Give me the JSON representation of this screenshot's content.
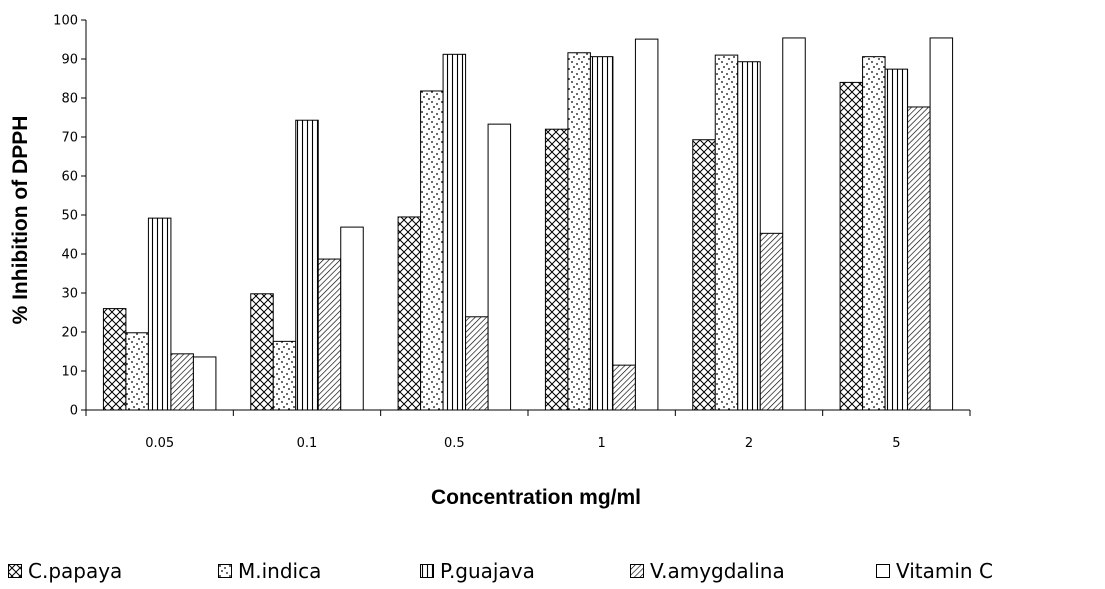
{
  "chart_data": {
    "type": "bar",
    "title": "",
    "xlabel": "Concentration mg/ml",
    "ylabel": "% Inhibition of DPPH",
    "categories": [
      "0.05",
      "0.1",
      "0.5",
      "1",
      "2",
      "5"
    ],
    "ylim": [
      0,
      100
    ],
    "yticks": [
      "0",
      "10",
      "20",
      "30",
      "40",
      "50",
      "60",
      "70",
      "80",
      "90",
      "100"
    ],
    "grid": false,
    "legend_position": "bottom",
    "series": [
      {
        "name": "C.papaya",
        "pattern": "crosshatch",
        "values": [
          26,
          29.8,
          49.5,
          72,
          69.3,
          84
        ]
      },
      {
        "name": "M.indica",
        "pattern": "dotted",
        "values": [
          19.8,
          17.6,
          81.8,
          91.6,
          91,
          90.6
        ]
      },
      {
        "name": "P.guajava",
        "pattern": "vertical-lines",
        "values": [
          49.2,
          74.3,
          91.2,
          90.6,
          89.3,
          87.4
        ]
      },
      {
        "name": "V.amygdalina",
        "pattern": "diagonal-lines",
        "values": [
          14.4,
          38.7,
          23.9,
          11.5,
          45.3,
          77.7
        ]
      },
      {
        "name": "Vitamin C",
        "pattern": "solid-white",
        "values": [
          13.6,
          46.9,
          73.3,
          95.1,
          95.4,
          95.4
        ]
      }
    ]
  }
}
